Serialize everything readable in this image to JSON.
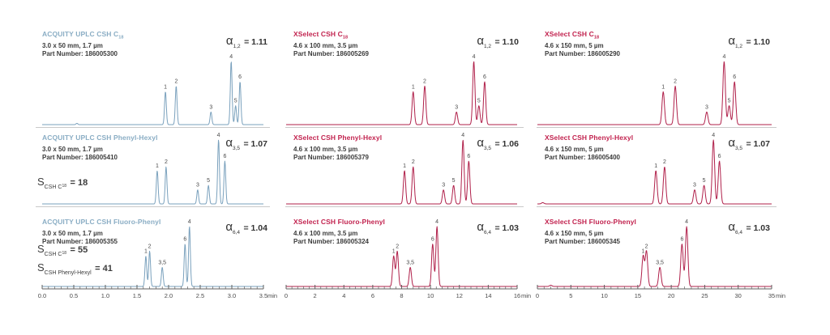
{
  "figure": {
    "type": "chromatogram-comparison-grid",
    "rows": 3,
    "cols": 3
  },
  "colors": {
    "background": "#ffffff",
    "blue_title": "#8aadc4",
    "blue_trace": "#7aa1bd",
    "red_title": "#c2234f",
    "red_trace": "#b0204a",
    "text": "#3c3c3c",
    "peak_label": "#4a4a4a",
    "axis": "#5f5f5f",
    "baseline_gray": "#c9c9c9"
  },
  "x_axes": [
    {
      "min": 0,
      "max": 3.5,
      "major_step": 0.5,
      "minor_step": 0.1,
      "unit": "min",
      "labels": [
        "0.0",
        "0.5",
        "1.0",
        "1.5",
        "2.0",
        "2.5",
        "3.0",
        "3.5"
      ]
    },
    {
      "min": 0,
      "max": 16,
      "major_step": 2,
      "minor_step": 0.4,
      "unit": "min",
      "labels": [
        "0",
        "2",
        "4",
        "6",
        "8",
        "10",
        "12",
        "14",
        "16"
      ]
    },
    {
      "min": 0,
      "max": 35,
      "major_step": 5,
      "minor_step": 1,
      "unit": "min",
      "labels": [
        "0",
        "5",
        "10",
        "15",
        "20",
        "25",
        "30",
        "35"
      ]
    }
  ],
  "chart_data": [
    {
      "type": "line",
      "row": 0,
      "col": 0,
      "palette": "blue",
      "title": "ACQUITY UPLC CSH C",
      "title_sub": "18",
      "dimensions": "3.0 x 50 mm, 1.7 µm",
      "part_label": "Part Number:",
      "part_number": "186005300",
      "alpha_symbol": "α",
      "alpha_sub": "1,2",
      "alpha_value": "= 1.11",
      "x_max": 3.5,
      "xlabel_unit": "min",
      "s_factors": [],
      "peaks": [
        {
          "label": "",
          "rt_min": 0.55,
          "rel_height": 0.02
        },
        {
          "label": "1",
          "rt_min": 1.95,
          "rel_height": 0.52
        },
        {
          "label": "2",
          "rt_min": 2.12,
          "rel_height": 0.61
        },
        {
          "label": "3",
          "rt_min": 2.67,
          "rel_height": 0.2
        },
        {
          "label": "4",
          "rt_min": 2.99,
          "rel_height": 1.0
        },
        {
          "label": "5",
          "rt_min": 3.06,
          "rel_height": 0.3
        },
        {
          "label": "6",
          "rt_min": 3.13,
          "rel_height": 0.68
        }
      ]
    },
    {
      "type": "line",
      "row": 0,
      "col": 1,
      "palette": "red",
      "title": "XSelect CSH C",
      "title_sub": "18",
      "dimensions": "4.6 x 100 mm, 3.5 µm",
      "part_label": "Part Number:",
      "part_number": "186005269",
      "alpha_symbol": "α",
      "alpha_sub": "1,2",
      "alpha_value": "= 1.10",
      "x_max": 16,
      "xlabel_unit": "min",
      "s_factors": [],
      "peaks": [
        {
          "label": "1",
          "rt_min": 8.8,
          "rel_height": 0.52
        },
        {
          "label": "2",
          "rt_min": 9.6,
          "rel_height": 0.61
        },
        {
          "label": "3",
          "rt_min": 11.8,
          "rel_height": 0.2
        },
        {
          "label": "4",
          "rt_min": 13.0,
          "rel_height": 1.0
        },
        {
          "label": "5",
          "rt_min": 13.35,
          "rel_height": 0.3
        },
        {
          "label": "6",
          "rt_min": 13.75,
          "rel_height": 0.68
        }
      ]
    },
    {
      "type": "line",
      "row": 0,
      "col": 2,
      "palette": "red",
      "title": "XSelect CSH C",
      "title_sub": "18",
      "dimensions": "4.6 x 150 mm, 5 µm",
      "part_label": "Part Number:",
      "part_number": "186005290",
      "alpha_symbol": "α",
      "alpha_sub": "1,2",
      "alpha_value": "= 1.10",
      "x_max": 35,
      "xlabel_unit": "min",
      "s_factors": [],
      "peaks": [
        {
          "label": "1",
          "rt_min": 18.8,
          "rel_height": 0.52
        },
        {
          "label": "2",
          "rt_min": 20.6,
          "rel_height": 0.61
        },
        {
          "label": "3",
          "rt_min": 25.3,
          "rel_height": 0.2
        },
        {
          "label": "4",
          "rt_min": 27.9,
          "rel_height": 1.0
        },
        {
          "label": "5",
          "rt_min": 28.65,
          "rel_height": 0.3
        },
        {
          "label": "6",
          "rt_min": 29.45,
          "rel_height": 0.68
        }
      ]
    },
    {
      "type": "line",
      "row": 1,
      "col": 0,
      "palette": "blue",
      "title": "ACQUITY UPLC CSH Phenyl-Hexyl",
      "title_sub": "",
      "dimensions": "3.0 x 50 mm, 1.7 µm",
      "part_label": "Part Number:",
      "part_number": "186005410",
      "alpha_symbol": "α",
      "alpha_sub": "3,5",
      "alpha_value": "= 1.07",
      "x_max": 3.5,
      "xlabel_unit": "min",
      "s_factors": [
        {
          "base": "S",
          "sub": "CSH C",
          "sub_sub": "18",
          "value": "= 18"
        }
      ],
      "peaks": [
        {
          "label": "1",
          "rt_min": 1.82,
          "rel_height": 0.52
        },
        {
          "label": "2",
          "rt_min": 1.96,
          "rel_height": 0.58
        },
        {
          "label": "3",
          "rt_min": 2.46,
          "rel_height": 0.22
        },
        {
          "label": "5",
          "rt_min": 2.63,
          "rel_height": 0.29
        },
        {
          "label": "4",
          "rt_min": 2.79,
          "rel_height": 1.0
        },
        {
          "label": "6",
          "rt_min": 2.89,
          "rel_height": 0.67
        }
      ]
    },
    {
      "type": "line",
      "row": 1,
      "col": 1,
      "palette": "red",
      "title": "XSelect CSH Phenyl-Hexyl",
      "title_sub": "",
      "dimensions": "4.6 x 100 mm, 3.5 µm",
      "part_label": "Part Number:",
      "part_number": "186005379",
      "alpha_symbol": "α",
      "alpha_sub": "3,5",
      "alpha_value": "= 1.06",
      "x_max": 16,
      "xlabel_unit": "min",
      "s_factors": [],
      "peaks": [
        {
          "label": "1",
          "rt_min": 8.2,
          "rel_height": 0.52
        },
        {
          "label": "2",
          "rt_min": 8.8,
          "rel_height": 0.58
        },
        {
          "label": "3",
          "rt_min": 10.9,
          "rel_height": 0.22
        },
        {
          "label": "5",
          "rt_min": 11.6,
          "rel_height": 0.29
        },
        {
          "label": "4",
          "rt_min": 12.25,
          "rel_height": 1.0
        },
        {
          "label": "6",
          "rt_min": 12.65,
          "rel_height": 0.67
        }
      ]
    },
    {
      "type": "line",
      "row": 1,
      "col": 2,
      "palette": "red",
      "title": "XSelect CSH Phenyl-Hexyl",
      "title_sub": "",
      "dimensions": "4.6 x 150 mm, 5 µm",
      "part_label": "Part Number:",
      "part_number": "186005400",
      "alpha_symbol": "α",
      "alpha_sub": "3,5",
      "alpha_value": "= 1.07",
      "x_max": 35,
      "xlabel_unit": "min",
      "s_factors": [],
      "peaks": [
        {
          "label": "",
          "rt_min": 0.8,
          "rel_height": 0.02
        },
        {
          "label": "1",
          "rt_min": 17.7,
          "rel_height": 0.52
        },
        {
          "label": "2",
          "rt_min": 19.0,
          "rel_height": 0.58
        },
        {
          "label": "3",
          "rt_min": 23.5,
          "rel_height": 0.22
        },
        {
          "label": "5",
          "rt_min": 24.9,
          "rel_height": 0.29
        },
        {
          "label": "4",
          "rt_min": 26.3,
          "rel_height": 1.0
        },
        {
          "label": "6",
          "rt_min": 27.2,
          "rel_height": 0.67
        }
      ]
    },
    {
      "type": "line",
      "row": 2,
      "col": 0,
      "palette": "blue",
      "title": "ACQUITY UPLC CSH Fluoro-Phenyl",
      "title_sub": "",
      "dimensions": "3.0 x 50 mm, 1.7 µm",
      "part_label": "Part Number:",
      "part_number": "186005355",
      "alpha_symbol": "α",
      "alpha_sub": "6,4",
      "alpha_value": "= 1.04",
      "x_max": 3.5,
      "xlabel_unit": "min",
      "s_factors": [
        {
          "base": "S",
          "sub": "CSH C",
          "sub_sub": "18",
          "value": "= 55"
        },
        {
          "base": "S",
          "sub": "CSH Phenyl-Hexyl",
          "sub_sub": "",
          "value": "= 41"
        }
      ],
      "peaks": [
        {
          "label": "1",
          "rt_min": 1.64,
          "rel_height": 0.51
        },
        {
          "label": "2",
          "rt_min": 1.7,
          "rel_height": 0.59
        },
        {
          "label": "3,5",
          "rt_min": 1.9,
          "rel_height": 0.32
        },
        {
          "label": "6",
          "rt_min": 2.26,
          "rel_height": 0.71
        },
        {
          "label": "4",
          "rt_min": 2.33,
          "rel_height": 1.0
        }
      ]
    },
    {
      "type": "line",
      "row": 2,
      "col": 1,
      "palette": "red",
      "title": "XSelect CSH Fluoro-Phenyl",
      "title_sub": "",
      "dimensions": "4.6 x 100 mm, 3.5 µm",
      "part_label": "Part Number:",
      "part_number": "186005324",
      "alpha_symbol": "α",
      "alpha_sub": "6,4",
      "alpha_value": "= 1.03",
      "x_max": 16,
      "xlabel_unit": "min",
      "s_factors": [],
      "peaks": [
        {
          "label": "1",
          "rt_min": 7.45,
          "rel_height": 0.51
        },
        {
          "label": "2",
          "rt_min": 7.7,
          "rel_height": 0.59
        },
        {
          "label": "3,5",
          "rt_min": 8.6,
          "rel_height": 0.32
        },
        {
          "label": "6",
          "rt_min": 10.15,
          "rel_height": 0.71
        },
        {
          "label": "4",
          "rt_min": 10.45,
          "rel_height": 1.0
        }
      ]
    },
    {
      "type": "line",
      "row": 2,
      "col": 2,
      "palette": "red",
      "title": "XSelect CSH Fluoro-Phenyl",
      "title_sub": "",
      "dimensions": "4.6 x 150 mm, 5 µm",
      "part_label": "Part Number:",
      "part_number": "186005345",
      "alpha_symbol": "α",
      "alpha_sub": "6,4",
      "alpha_value": "= 1.03",
      "x_max": 35,
      "xlabel_unit": "min",
      "s_factors": [],
      "peaks": [
        {
          "label": "",
          "rt_min": 2.0,
          "rel_height": 0.02
        },
        {
          "label": "1",
          "rt_min": 15.8,
          "rel_height": 0.51
        },
        {
          "label": "2",
          "rt_min": 16.3,
          "rel_height": 0.59
        },
        {
          "label": "3,5",
          "rt_min": 18.3,
          "rel_height": 0.32
        },
        {
          "label": "6",
          "rt_min": 21.6,
          "rel_height": 0.71
        },
        {
          "label": "4",
          "rt_min": 22.3,
          "rel_height": 1.0
        }
      ]
    }
  ]
}
